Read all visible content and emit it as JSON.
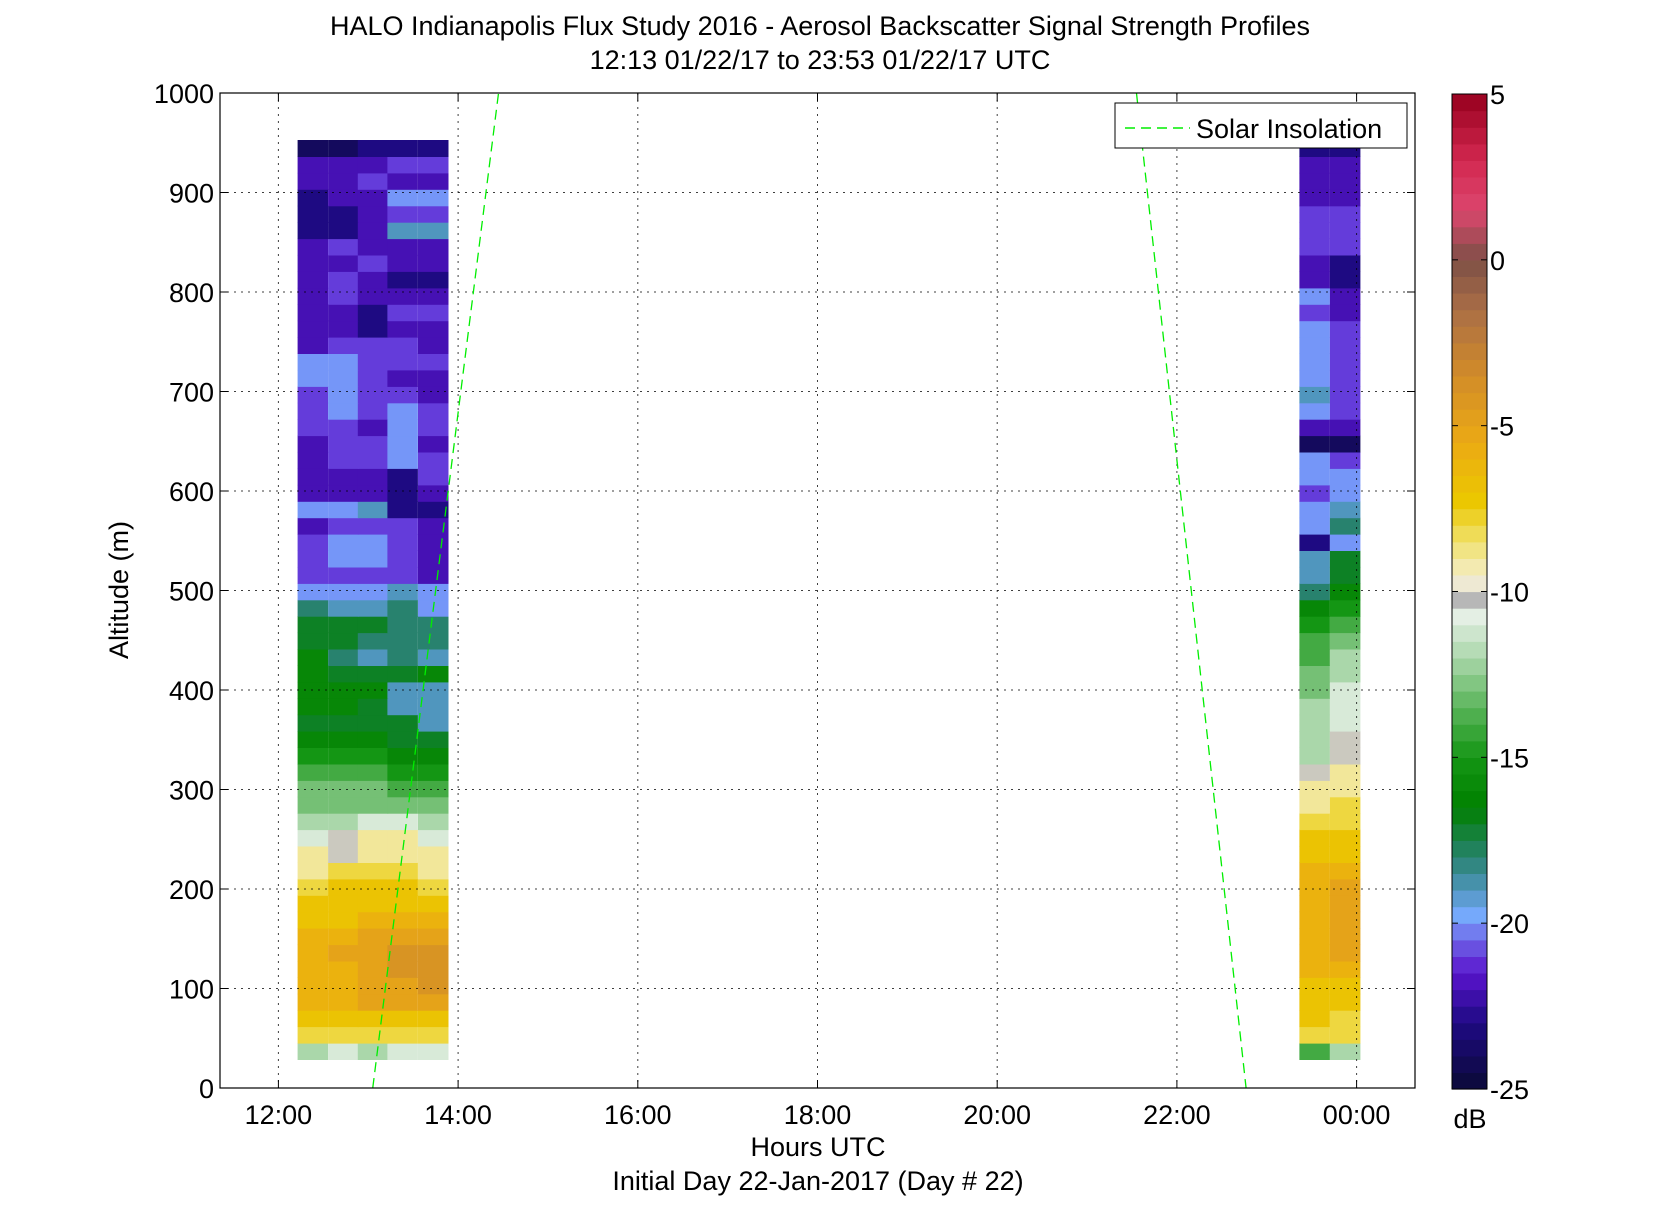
{
  "chart_data": {
    "type": "heatmap",
    "title": "HALO Indianapolis Flux Study 2016 - Aerosol Backscatter Signal Strength Profiles",
    "subtitle": "12:13 01/22/17 to 23:53 01/22/17  UTC",
    "xlabel": "Hours UTC",
    "xlabel2": "Initial Day 22-Jan-2017 (Day # 22)",
    "ylabel": "Altitude (m)",
    "xlim": [
      11.35,
      24.65
    ],
    "ylim": [
      0,
      1000
    ],
    "x_ticks": [
      12,
      14,
      16,
      18,
      20,
      22,
      24
    ],
    "x_tick_labels": [
      "12:00",
      "14:00",
      "16:00",
      "18:00",
      "20:00",
      "22:00",
      "00:00"
    ],
    "y_ticks": [
      0,
      100,
      200,
      300,
      400,
      500,
      600,
      700,
      800,
      900,
      1000
    ],
    "y_tick_labels": [
      "0",
      "100",
      "200",
      "300",
      "400",
      "500",
      "600",
      "700",
      "800",
      "900",
      "1000"
    ],
    "grid": true,
    "colorbar": {
      "label": "dB",
      "range": [
        -25,
        5
      ],
      "ticks": [
        5,
        0,
        -5,
        -10,
        -15,
        -20,
        -25
      ],
      "tick_labels": [
        "5",
        "0",
        "-5",
        "-10",
        "-15",
        "-20",
        "-25"
      ]
    },
    "legend": {
      "position": "top-right",
      "entries": [
        "Solar Insolation"
      ]
    },
    "solar_insolation": {
      "color": "#00ee00",
      "morning": [
        [
          13.05,
          0
        ],
        [
          14.45,
          1000
        ]
      ],
      "evening": [
        [
          21.55,
          1000
        ],
        [
          22.77,
          0
        ]
      ]
    },
    "altitude_bins": {
      "first_center": 37,
      "step": 16.5
    },
    "series": [
      {
        "name": "morning",
        "x": [
          12.38,
          12.72,
          13.05,
          13.38,
          13.72
        ],
        "dB": [
          [
            -12,
            -11,
            -12,
            -11,
            -11
          ],
          [
            -8,
            -8,
            -8,
            -8,
            -8
          ],
          [
            -7,
            -7,
            -7,
            -7,
            -7
          ],
          [
            -6,
            -6,
            -5,
            -5,
            -5
          ],
          [
            -6,
            -6,
            -5,
            -5,
            -4
          ],
          [
            -6,
            -6,
            -5,
            -4,
            -4
          ],
          [
            -6,
            -5,
            -5,
            -4,
            -4
          ],
          [
            -6,
            -6,
            -5,
            -5,
            -5
          ],
          [
            -7,
            -7,
            -6,
            -6,
            -6
          ],
          [
            -7,
            -7,
            -7,
            -7,
            -7
          ],
          [
            -8,
            -7,
            -7,
            -7,
            -8
          ],
          [
            -9,
            -8,
            -8,
            -8,
            -9
          ],
          [
            -9,
            -10,
            -9,
            -9,
            -9
          ],
          [
            -11,
            -10,
            -9,
            -9,
            -11
          ],
          [
            -12,
            -12,
            -11,
            -11,
            -12
          ],
          [
            -13,
            -13,
            -13,
            -13,
            -13
          ],
          [
            -13,
            -13,
            -13,
            -14,
            -14
          ],
          [
            -14,
            -14,
            -14,
            -15,
            -15
          ],
          [
            -15,
            -15,
            -15,
            -16,
            -16
          ],
          [
            -16,
            -16,
            -16,
            -17,
            -17
          ],
          [
            -17,
            -17,
            -17,
            -17,
            -19
          ],
          [
            -16,
            -16,
            -17,
            -19,
            -19
          ],
          [
            -16,
            -16,
            -16,
            -19,
            -19
          ],
          [
            -16,
            -17,
            -17,
            -17,
            -16
          ],
          [
            -16,
            -18,
            -19,
            -18,
            -19
          ],
          [
            -17,
            -17,
            -18,
            -18,
            -18
          ],
          [
            -17,
            -17,
            -17,
            -18,
            -18
          ],
          [
            -18,
            -19,
            -19,
            -18,
            -20
          ],
          [
            -20,
            -20,
            -20,
            -19,
            -20
          ],
          [
            -21,
            -21,
            -21,
            -21,
            -22
          ],
          [
            -21,
            -20,
            -20,
            -21,
            -22
          ],
          [
            -21,
            -20,
            -20,
            -21,
            -22
          ],
          [
            -22,
            -21,
            -21,
            -21,
            -22
          ],
          [
            -20,
            -20,
            -19,
            -23,
            -23
          ],
          [
            -22,
            -22,
            -22,
            -23,
            -22
          ],
          [
            -22,
            -22,
            -22,
            -23,
            -21
          ],
          [
            -22,
            -21,
            -21,
            -20,
            -21
          ],
          [
            -22,
            -21,
            -21,
            -20,
            -22
          ],
          [
            -21,
            -21,
            -22,
            -20,
            -21
          ],
          [
            -21,
            -20,
            -21,
            -20,
            -21
          ],
          [
            -21,
            -20,
            -21,
            -21,
            -22
          ],
          [
            -20,
            -20,
            -21,
            -22,
            -22
          ],
          [
            -20,
            -20,
            -21,
            -21,
            -21
          ],
          [
            -22,
            -21,
            -21,
            -21,
            -22
          ],
          [
            -22,
            -22,
            -23,
            -22,
            -22
          ],
          [
            -22,
            -22,
            -23,
            -21,
            -21
          ],
          [
            -22,
            -21,
            -22,
            -22,
            -22
          ],
          [
            -22,
            -21,
            -22,
            -23,
            -23
          ],
          [
            -22,
            -22,
            -21,
            -22,
            -22
          ],
          [
            -22,
            -21,
            -22,
            -22,
            -22
          ],
          [
            -23,
            -23,
            -22,
            -19,
            -19
          ],
          [
            -23,
            -23,
            -22,
            -21,
            -21
          ],
          [
            -23,
            -22,
            -22,
            -20,
            -20
          ],
          [
            -22,
            -22,
            -21,
            -22,
            -22
          ],
          [
            -22,
            -22,
            -22,
            -21,
            -21
          ],
          [
            -24,
            -24,
            -23,
            -23,
            -23
          ]
        ]
      },
      {
        "name": "evening",
        "x": [
          23.53,
          23.87
        ],
        "dB": [
          [
            -14,
            -12
          ],
          [
            -8,
            -8
          ],
          [
            -7,
            -8
          ],
          [
            -7,
            -7
          ],
          [
            -7,
            -7
          ],
          [
            -6,
            -6
          ],
          [
            -6,
            -5
          ],
          [
            -6,
            -5
          ],
          [
            -6,
            -5
          ],
          [
            -6,
            -5
          ],
          [
            -6,
            -5
          ],
          [
            -6,
            -6
          ],
          [
            -7,
            -7
          ],
          [
            -7,
            -7
          ],
          [
            -8,
            -8
          ],
          [
            -9,
            -8
          ],
          [
            -9,
            -9
          ],
          [
            -10,
            -9
          ],
          [
            -12,
            -10
          ],
          [
            -12,
            -10
          ],
          [
            -12,
            -11
          ],
          [
            -12,
            -11
          ],
          [
            -13,
            -11
          ],
          [
            -13,
            -12
          ],
          [
            -14,
            -12
          ],
          [
            -14,
            -13
          ],
          [
            -15,
            -14
          ],
          [
            -16,
            -15
          ],
          [
            -18,
            -16
          ],
          [
            -19,
            -17
          ],
          [
            -19,
            -17
          ],
          [
            -23,
            -20
          ],
          [
            -20,
            -18
          ],
          [
            -20,
            -19
          ],
          [
            -21,
            -20
          ],
          [
            -20,
            -20
          ],
          [
            -20,
            -21
          ],
          [
            -24,
            -24
          ],
          [
            -22,
            -22
          ],
          [
            -20,
            -21
          ],
          [
            -19,
            -21
          ],
          [
            -20,
            -21
          ],
          [
            -20,
            -21
          ],
          [
            -20,
            -21
          ],
          [
            -20,
            -21
          ],
          [
            -21,
            -22
          ],
          [
            -20,
            -22
          ],
          [
            -22,
            -23
          ],
          [
            -22,
            -23
          ],
          [
            -21,
            -21
          ],
          [
            -21,
            -21
          ],
          [
            -21,
            -21
          ],
          [
            -22,
            -22
          ],
          [
            -22,
            -22
          ],
          [
            -22,
            -22
          ],
          [
            -23,
            -23
          ]
        ]
      }
    ]
  }
}
